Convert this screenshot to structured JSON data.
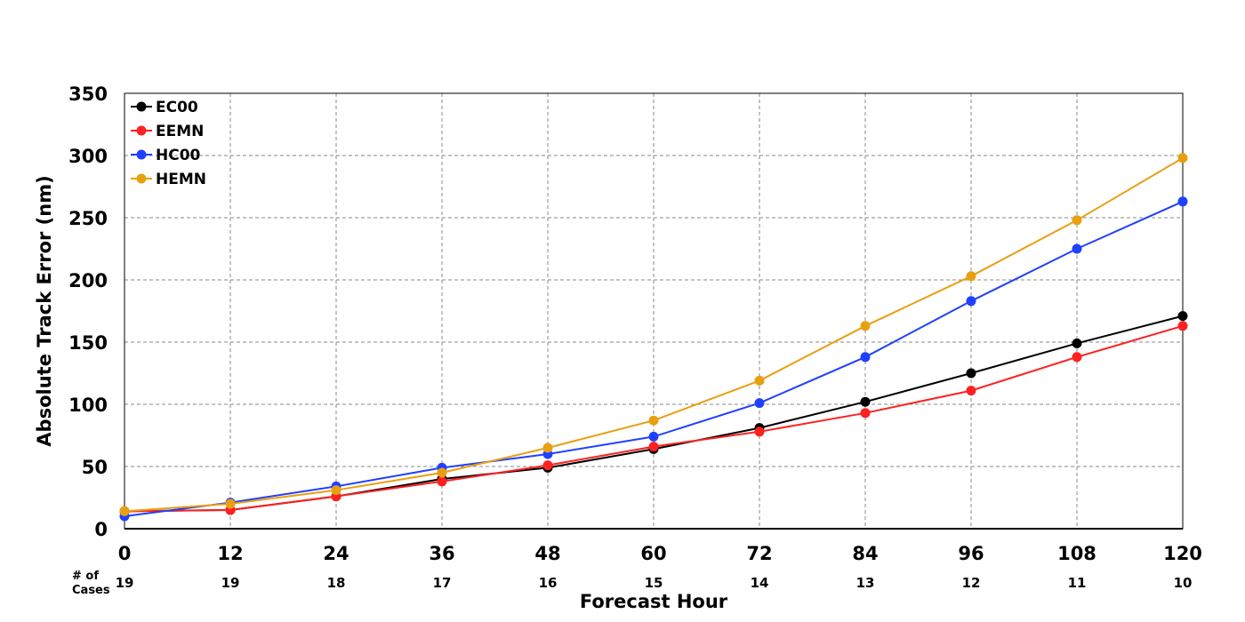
{
  "chart_data": {
    "type": "line",
    "title": "",
    "xlabel": "Forecast Hour",
    "ylabel": "Absolute Track Error (nm)",
    "x": [
      0,
      12,
      24,
      36,
      48,
      60,
      72,
      84,
      96,
      108,
      120
    ],
    "xlim": [
      0,
      120
    ],
    "ylim": [
      0,
      350
    ],
    "yticks": [
      0,
      50,
      100,
      150,
      200,
      250,
      300,
      350
    ],
    "grid": true,
    "legend_position": "top-left",
    "cases_label_line1": "# of",
    "cases_label_line2": "Cases",
    "cases": [
      19,
      19,
      18,
      17,
      16,
      15,
      14,
      13,
      12,
      11,
      10
    ],
    "series": [
      {
        "name": "EC00",
        "color": "#000000",
        "values": [
          14,
          15,
          26,
          40,
          49,
          64,
          81,
          102,
          125,
          149,
          171
        ]
      },
      {
        "name": "EEMN",
        "color": "#ff2020",
        "values": [
          14,
          15,
          26,
          38,
          51,
          66,
          78,
          93,
          111,
          138,
          163
        ]
      },
      {
        "name": "HC00",
        "color": "#2040ff",
        "values": [
          10,
          21,
          34,
          49,
          60,
          74,
          101,
          138,
          183,
          225,
          263
        ]
      },
      {
        "name": "HEMN",
        "color": "#e8a010",
        "values": [
          14,
          20,
          31,
          45,
          65,
          87,
          119,
          163,
          203,
          248,
          298
        ]
      }
    ]
  }
}
